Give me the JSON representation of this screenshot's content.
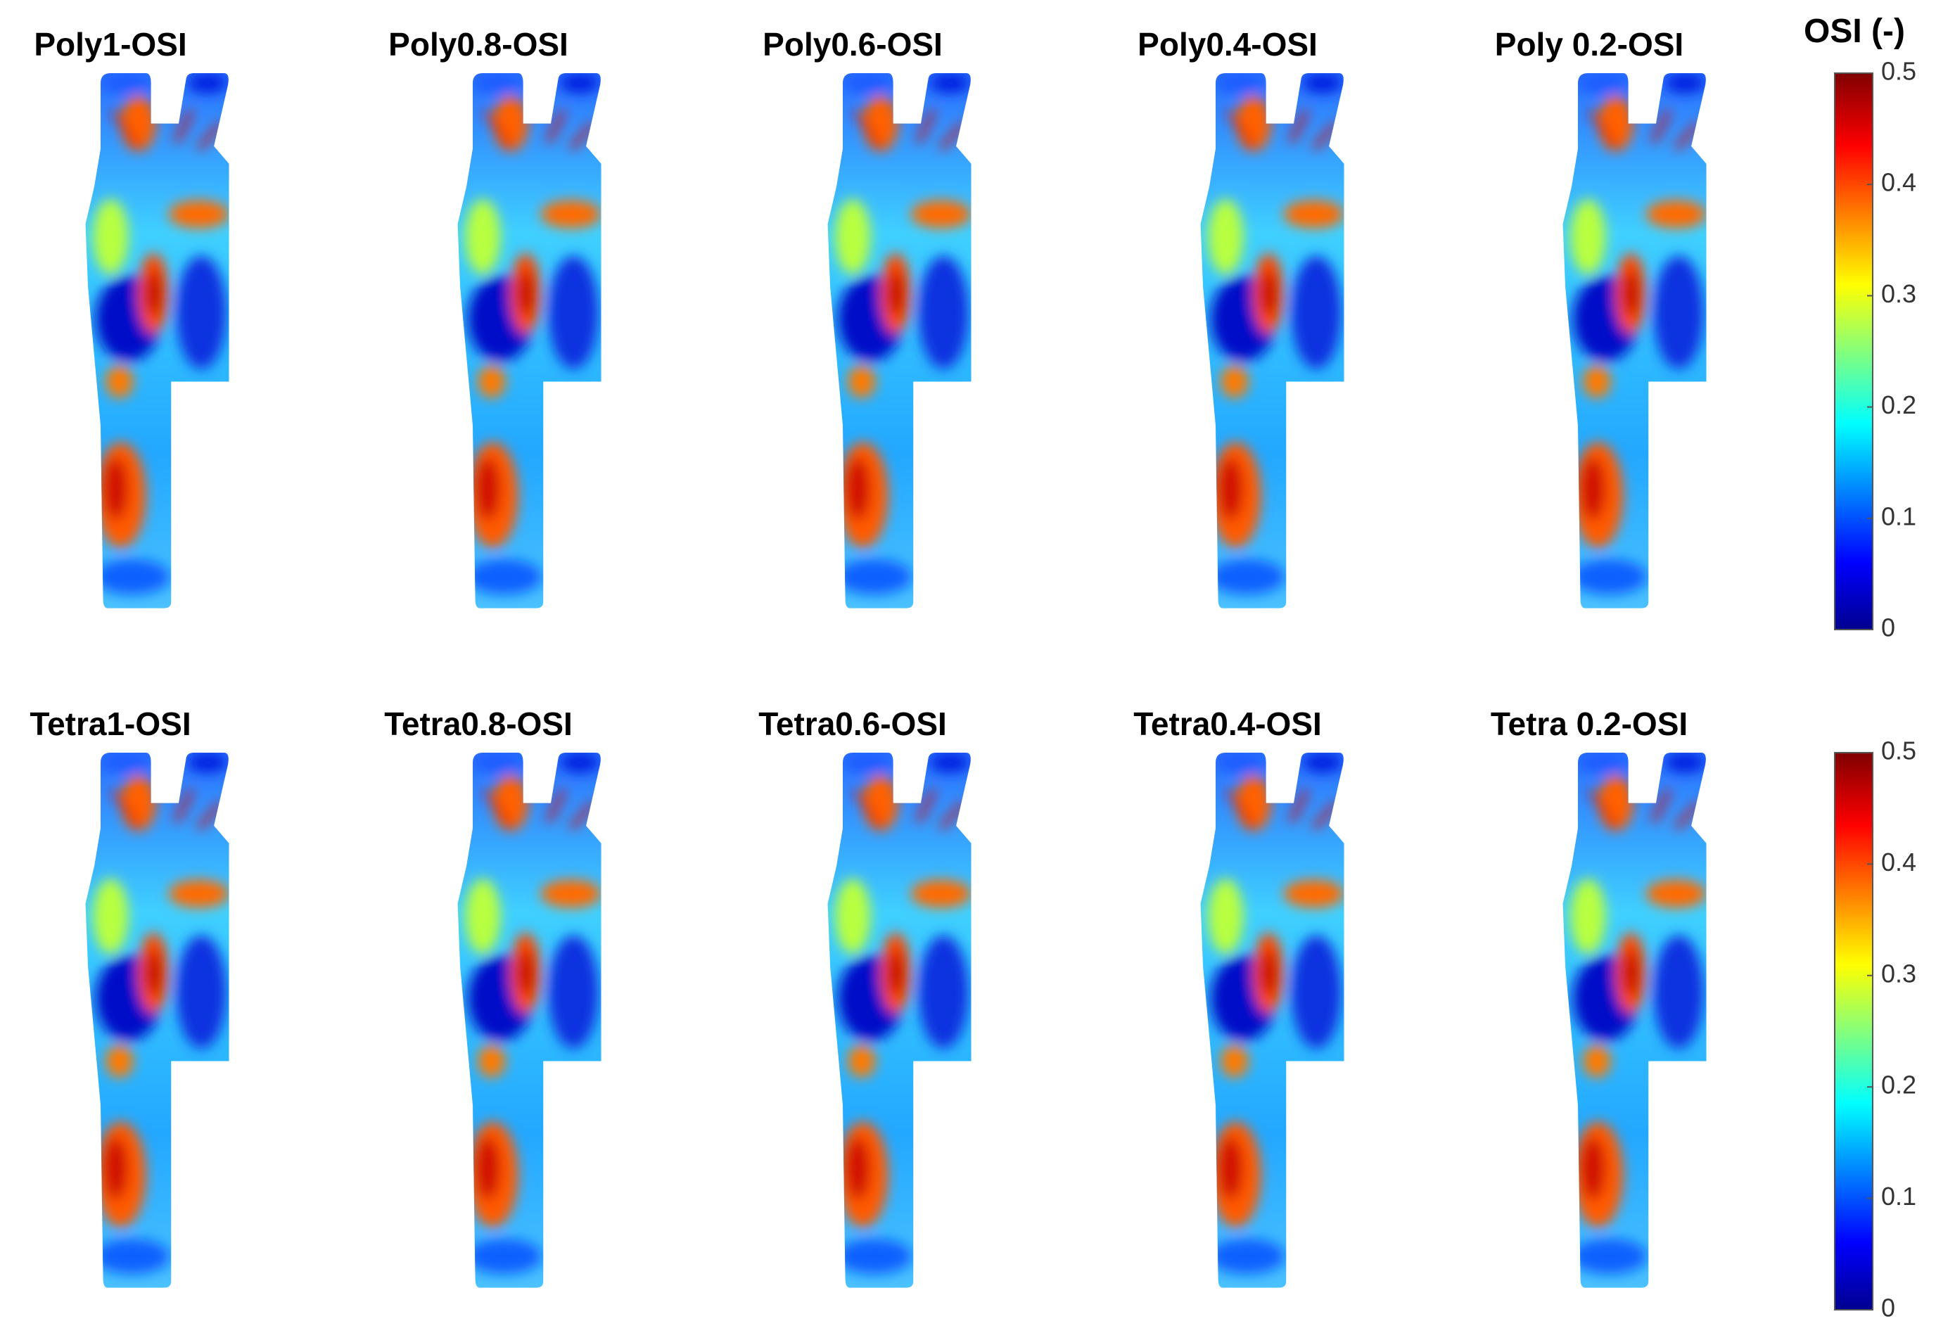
{
  "panels": [
    {
      "title": "Poly1-OSI"
    },
    {
      "title": "Poly0.8-OSI"
    },
    {
      "title": "Poly0.6-OSI"
    },
    {
      "title": "Poly0.4-OSI"
    },
    {
      "title": "Poly 0.2-OSI"
    },
    {
      "title": "Tetra1-OSI"
    },
    {
      "title": "Tetra0.8-OSI"
    },
    {
      "title": "Tetra0.6-OSI"
    },
    {
      "title": "Tetra0.4-OSI"
    },
    {
      "title": "Tetra 0.2-OSI"
    }
  ],
  "colorbars": [
    {
      "title": "OSI (-)",
      "ticks": [
        0,
        0.1,
        0.2,
        0.3,
        0.4,
        0.5
      ]
    },
    {
      "ticks": [
        0,
        0.1,
        0.2,
        0.3,
        0.4,
        0.5
      ]
    }
  ]
}
